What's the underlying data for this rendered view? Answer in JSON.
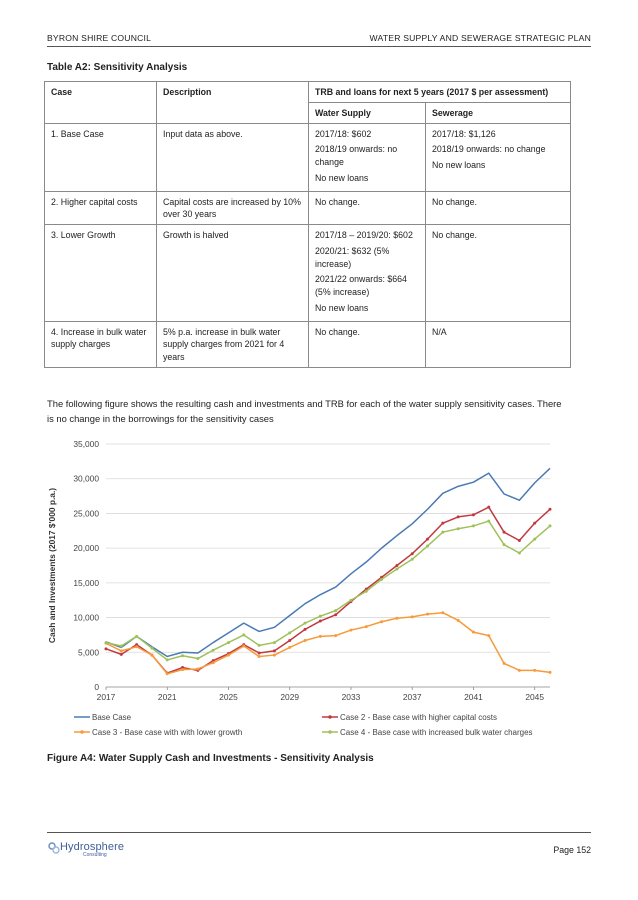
{
  "header": {
    "left": "BYRON SHIRE COUNCIL",
    "right": "WATER SUPPLY AND SEWERAGE STRATEGIC PLAN"
  },
  "table": {
    "caption": "Table A2: Sensitivity Analysis",
    "headers": {
      "case": "Case",
      "description": "Description",
      "trb": "TRB and loans for next 5 years (2017 $ per assessment)",
      "water": "Water Supply",
      "sewerage": "Sewerage"
    },
    "rows": [
      {
        "case": "1. Base Case",
        "description": "Input data as above.",
        "water": [
          "2017/18: $602",
          "2018/19 onwards: no change",
          "No new loans"
        ],
        "sewerage": [
          "2017/18: $1,126",
          "2018/19 onwards: no change",
          "No new loans"
        ]
      },
      {
        "case": "2. Higher capital costs",
        "description": "Capital costs are increased by 10% over 30 years",
        "water": [
          "No change."
        ],
        "sewerage": [
          "No change."
        ]
      },
      {
        "case": "3. Lower Growth",
        "description": "Growth is halved",
        "water": [
          "2017/18 – 2019/20: $602",
          "2020/21: $632 (5% increase)",
          "2021/22 onwards: $664 (5% increase)",
          "No new loans"
        ],
        "sewerage": [
          "No change."
        ]
      },
      {
        "case": "4. Increase in bulk water supply charges",
        "description": "5% p.a. increase in bulk water supply charges from 2021 for 4 years",
        "water": [
          "No change."
        ],
        "sewerage": [
          "N/A"
        ]
      }
    ]
  },
  "paragraph": "The following figure shows the resulting cash and investments and TRB for each of the water supply sensitivity cases. There is no change in the borrowings for the sensitivity cases",
  "chart_data": {
    "type": "line",
    "title": "",
    "xlabel": "",
    "ylabel": "Cash and Investments (2017 $'000 p.a.)",
    "xlim": [
      2017,
      2046
    ],
    "ylim": [
      0,
      35000
    ],
    "x_ticks": [
      "2017",
      "2021",
      "2025",
      "2029",
      "2033",
      "2037",
      "2041",
      "2045"
    ],
    "y_ticks": [
      "0",
      "5,000",
      "10,000",
      "15,000",
      "20,000",
      "25,000",
      "30,000",
      "35,000"
    ],
    "grid": "horizontal",
    "legend_position": "bottom",
    "x": [
      2017,
      2018,
      2019,
      2020,
      2021,
      2022,
      2023,
      2024,
      2025,
      2026,
      2027,
      2028,
      2029,
      2030,
      2031,
      2032,
      2033,
      2034,
      2035,
      2036,
      2037,
      2038,
      2039,
      2040,
      2041,
      2042,
      2043,
      2044,
      2045,
      2046
    ],
    "series": [
      {
        "name": "Base Case",
        "color": "#4a7ab5",
        "values": [
          6500,
          5700,
          7300,
          5800,
          4400,
          5000,
          4900,
          6400,
          7800,
          9200,
          8000,
          8600,
          10300,
          12000,
          13300,
          14400,
          16300,
          18000,
          20000,
          21800,
          23500,
          25600,
          27900,
          28900,
          29500,
          30800,
          27800,
          26900,
          29400,
          31500
        ]
      },
      {
        "name": "Case 2 - Base case with higher capital costs",
        "color": "#c0393f",
        "values": [
          5500,
          4700,
          6100,
          4600,
          2000,
          2800,
          2400,
          3800,
          4800,
          6100,
          4900,
          5200,
          6700,
          8300,
          9500,
          10400,
          12300,
          14100,
          15800,
          17500,
          19200,
          21300,
          23600,
          24500,
          24800,
          25900,
          22300,
          21100,
          23600,
          25600
        ]
      },
      {
        "name": "Case 3 - Base case with with lower growth",
        "color": "#f79a3a",
        "values": [
          6300,
          5200,
          5800,
          4600,
          1900,
          2500,
          2600,
          3500,
          4600,
          5900,
          4400,
          4600,
          5700,
          6700,
          7300,
          7400,
          8200,
          8700,
          9400,
          9900,
          10100,
          10500,
          10700,
          9600,
          7900,
          7400,
          3400,
          2400,
          2400,
          2100
        ]
      },
      {
        "name": "Case 4 - Base case with increased bulk water charges",
        "color": "#9fc15a",
        "values": [
          6400,
          5900,
          7300,
          5600,
          3900,
          4500,
          4100,
          5300,
          6400,
          7500,
          6000,
          6400,
          7800,
          9200,
          10200,
          11000,
          12500,
          13800,
          15500,
          17000,
          18400,
          20300,
          22300,
          22800,
          23200,
          23900,
          20500,
          19300,
          21300,
          23200
        ]
      }
    ]
  },
  "figure_caption": "Figure A4: Water Supply Cash and Investments - Sensitivity Analysis",
  "footer": {
    "logo_word": "Hydrosphere",
    "logo_sub": "Consulting",
    "page": "Page 152"
  }
}
